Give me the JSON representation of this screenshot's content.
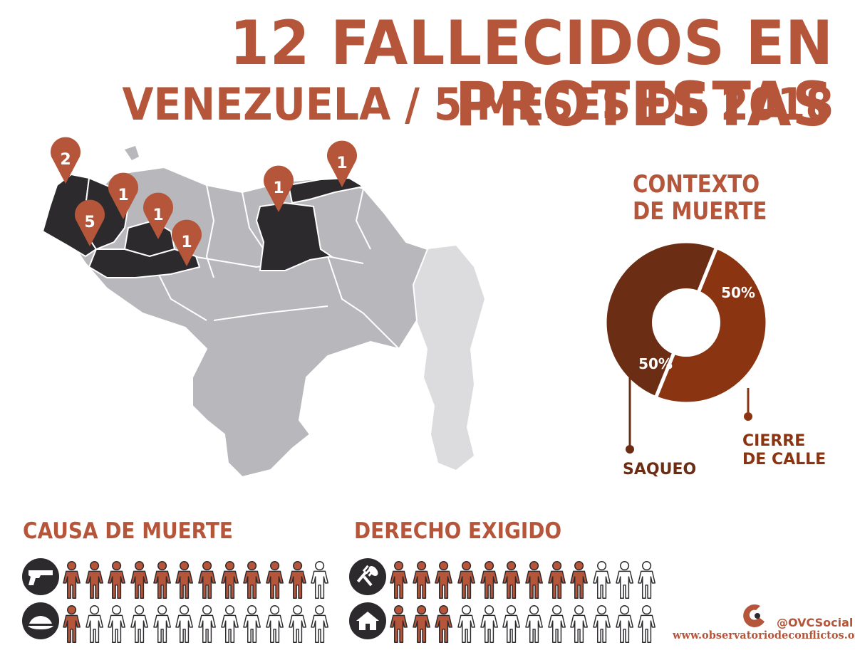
{
  "header": {
    "title": "12 FALLECIDOS EN PROTESTAS",
    "subtitle": "VENEZUELA  /  5 MESES DE 2018"
  },
  "map": {
    "markers": [
      {
        "count": "2",
        "state": "Zulia"
      },
      {
        "count": "5",
        "state": "Zulia-Sur"
      },
      {
        "count": "1",
        "state": "Falcón"
      },
      {
        "count": "1",
        "state": "Lara"
      },
      {
        "count": "1",
        "state": "Portuguesa"
      },
      {
        "count": "1",
        "state": "Anzoátegui"
      },
      {
        "count": "1",
        "state": "Sucre"
      }
    ]
  },
  "contexto": {
    "title_line1": "CONTEXTO",
    "title_line2": "DE MUERTE",
    "labels": {
      "saqueo": "SAQUEO",
      "cierre_line1": "CIERRE",
      "cierre_line2": "DE CALLE"
    }
  },
  "chart_data": {
    "type": "pie",
    "title": "CONTEXTO DE MUERTE",
    "categories": [
      "SAQUEO",
      "CIERRE DE CALLE"
    ],
    "values": [
      50,
      50
    ],
    "value_labels": [
      "50%",
      "50%"
    ],
    "colors": [
      "#6b2d14",
      "#8b3412"
    ]
  },
  "causa": {
    "title": "CAUSA DE MUERTE",
    "rows": [
      {
        "icon": "gun-icon",
        "filled": 11,
        "total": 12
      },
      {
        "icon": "hat-icon",
        "filled": 1,
        "total": 12
      }
    ]
  },
  "derecho": {
    "title": "DERECHO EXIGIDO",
    "rows": [
      {
        "icon": "fork-spoon-icon",
        "filled": 9,
        "total": 12
      },
      {
        "icon": "house-icon",
        "filled": 3,
        "total": 12
      }
    ]
  },
  "footer": {
    "handle": "@OVCSocial",
    "website": "www.observatoriodeconflictos.org.ve"
  },
  "colors": {
    "accent": "#b5553a",
    "dark": "#2d2a2e",
    "gray": "#b8b8bc",
    "light_gray": "#dcdcde"
  }
}
